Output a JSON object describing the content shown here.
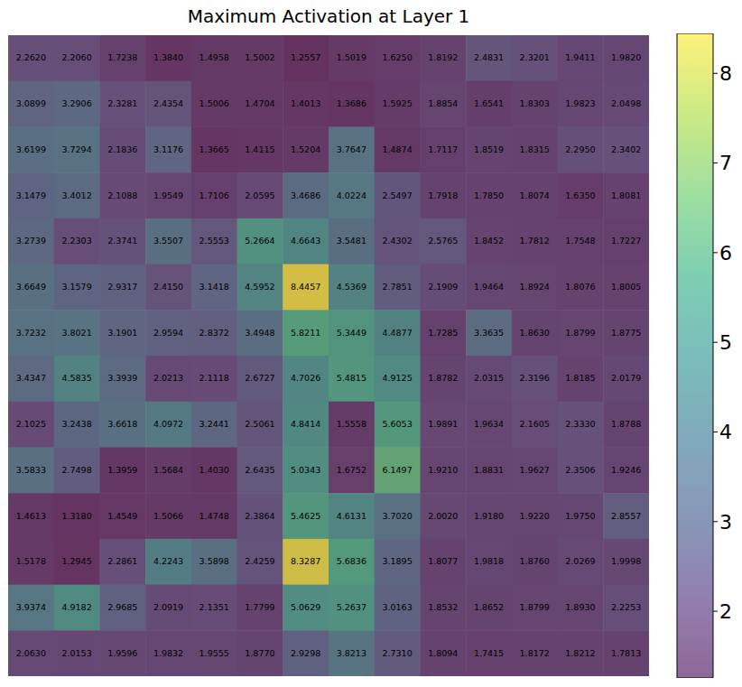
{
  "chart_data": {
    "type": "heatmap",
    "title": "Maximum Activation at Layer 1",
    "data_labels": true,
    "tick_labels": false,
    "cells": [
      [
        2.262,
        2.206,
        1.7238,
        1.384,
        1.4958,
        1.5002,
        1.2557,
        1.5019,
        1.625,
        1.8192,
        2.4831,
        2.3201,
        1.9411,
        1.982
      ],
      [
        3.0899,
        3.2906,
        2.3281,
        2.4354,
        1.5006,
        1.4704,
        1.4013,
        1.3686,
        1.5925,
        1.8854,
        1.6541,
        1.8303,
        1.9823,
        2.0498
      ],
      [
        3.6199,
        3.7294,
        2.1836,
        3.1176,
        1.3665,
        1.4115,
        1.5204,
        3.7647,
        1.4874,
        1.7117,
        1.8519,
        1.8315,
        2.295,
        2.3402
      ],
      [
        3.1479,
        3.4012,
        2.1088,
        1.9549,
        1.7106,
        2.0595,
        3.4686,
        4.0224,
        2.5497,
        1.7918,
        1.785,
        1.8074,
        1.635,
        1.8081
      ],
      [
        3.2739,
        2.2303,
        2.3741,
        3.5507,
        2.5553,
        5.2664,
        4.6643,
        3.5481,
        2.4302,
        2.5765,
        1.8452,
        1.7812,
        1.7548,
        1.7227
      ],
      [
        3.6649,
        3.1579,
        2.9317,
        2.415,
        3.1418,
        4.5952,
        8.4457,
        4.5369,
        2.7851,
        2.1909,
        1.9464,
        1.8924,
        1.8076,
        1.8005
      ],
      [
        3.7232,
        3.8021,
        3.1901,
        2.9594,
        2.8372,
        3.4948,
        5.8211,
        5.3449,
        4.4877,
        1.7285,
        3.3635,
        1.863,
        1.8799,
        1.8775
      ],
      [
        3.4347,
        4.5835,
        3.3939,
        2.0213,
        2.1118,
        2.6727,
        4.7026,
        5.4815,
        4.9125,
        1.8782,
        2.0315,
        2.3196,
        1.8185,
        2.0179
      ],
      [
        2.1025,
        3.2438,
        3.6618,
        4.0972,
        3.2441,
        2.5061,
        4.8414,
        1.5558,
        5.6053,
        1.9891,
        1.9634,
        2.1605,
        2.333,
        1.8788
      ],
      [
        3.5833,
        2.7498,
        1.3959,
        1.5684,
        1.403,
        2.6435,
        5.0343,
        1.6752,
        6.1497,
        1.921,
        1.8831,
        1.9627,
        2.3506,
        1.9246
      ],
      [
        1.4613,
        1.318,
        1.4549,
        1.5066,
        1.4748,
        2.3864,
        5.4625,
        4.6131,
        3.702,
        2.002,
        1.918,
        1.922,
        1.975,
        2.8557
      ],
      [
        1.5178,
        1.2945,
        2.2861,
        4.2243,
        3.5898,
        2.4259,
        8.3287,
        5.6836,
        3.1895,
        1.8077,
        1.9818,
        1.876,
        2.0269,
        1.9998
      ],
      [
        3.9374,
        4.9182,
        2.9685,
        2.0919,
        2.1351,
        1.7799,
        5.0629,
        5.2637,
        3.0163,
        1.8532,
        1.8652,
        1.8799,
        1.893,
        2.2253
      ],
      [
        2.063,
        2.0153,
        1.9596,
        1.9832,
        1.9555,
        1.877,
        2.9298,
        3.8213,
        2.731,
        1.8094,
        1.7415,
        1.8172,
        1.8212,
        1.7813
      ]
    ],
    "value_labels": [
      [
        "2.2620",
        "2.2060",
        "1.7238",
        "1.3840",
        "1.4958",
        "1.5002",
        "1.2557",
        "1.5019",
        "1.6250",
        "1.8192",
        "2.4831",
        "2.3201",
        "1.9411",
        "1.9820"
      ],
      [
        "3.0899",
        "3.2906",
        "2.3281",
        "2.4354",
        "1.5006",
        "1.4704",
        "1.4013",
        "1.3686",
        "1.5925",
        "1.8854",
        "1.6541",
        "1.8303",
        "1.9823",
        "2.0498"
      ],
      [
        "3.6199",
        "3.7294",
        "2.1836",
        "3.1176",
        "1.3665",
        "1.4115",
        "1.5204",
        "3.7647",
        "1.4874",
        "1.7117",
        "1.8519",
        "1.8315",
        "2.2950",
        "2.3402"
      ],
      [
        "3.1479",
        "3.4012",
        "2.1088",
        "1.9549",
        "1.7106",
        "2.0595",
        "3.4686",
        "4.0224",
        "2.5497",
        "1.7918",
        "1.7850",
        "1.8074",
        "1.6350",
        "1.8081"
      ],
      [
        "3.2739",
        "2.2303",
        "2.3741",
        "3.5507",
        "2.5553",
        "5.2664",
        "4.6643",
        "3.5481",
        "2.4302",
        "2.5765",
        "1.8452",
        "1.7812",
        "1.7548",
        "1.7227"
      ],
      [
        "3.6649",
        "3.1579",
        "2.9317",
        "2.4150",
        "3.1418",
        "4.5952",
        "8.4457",
        "4.5369",
        "2.7851",
        "2.1909",
        "1.9464",
        "1.8924",
        "1.8076",
        "1.8005"
      ],
      [
        "3.7232",
        "3.8021",
        "3.1901",
        "2.9594",
        "2.8372",
        "3.4948",
        "5.8211",
        "5.3449",
        "4.4877",
        "1.7285",
        "3.3635",
        "1.8630",
        "1.8799",
        "1.8775"
      ],
      [
        "3.4347",
        "4.5835",
        "3.3939",
        "2.0213",
        "2.1118",
        "2.6727",
        "4.7026",
        "5.4815",
        "4.9125",
        "1.8782",
        "2.0315",
        "2.3196",
        "1.8185",
        "2.0179"
      ],
      [
        "2.1025",
        "3.2438",
        "3.6618",
        "4.0972",
        "3.2441",
        "2.5061",
        "4.8414",
        "1.5558",
        "5.6053",
        "1.9891",
        "1.9634",
        "2.1605",
        "2.3330",
        "1.8788"
      ],
      [
        "3.5833",
        "2.7498",
        "1.3959",
        "1.5684",
        "1.4030",
        "2.6435",
        "5.0343",
        "1.6752",
        "6.1497",
        "1.9210",
        "1.8831",
        "1.9627",
        "2.3506",
        "1.9246"
      ],
      [
        "1.4613",
        "1.3180",
        "1.4549",
        "1.5066",
        "1.4748",
        "2.3864",
        "5.4625",
        "4.6131",
        "3.7020",
        "2.0020",
        "1.9180",
        "1.9220",
        "1.9750",
        "2.8557"
      ],
      [
        "1.5178",
        "1.2945",
        "2.2861",
        "4.2243",
        "3.5898",
        "2.4259",
        "8.3287",
        "5.6836",
        "3.1895",
        "1.8077",
        "1.9818",
        "1.8760",
        "2.0269",
        "1.9998"
      ],
      [
        "3.9374",
        "4.9182",
        "2.9685",
        "2.0919",
        "2.1351",
        "1.7799",
        "5.0629",
        "5.2637",
        "3.0163",
        "1.8532",
        "1.8652",
        "1.8799",
        "1.8930",
        "2.2253"
      ],
      [
        "2.0630",
        "2.0153",
        "1.9596",
        "1.9832",
        "1.9555",
        "1.8770",
        "2.9298",
        "3.8213",
        "2.7310",
        "1.8094",
        "1.7415",
        "1.8172",
        "1.8212",
        "1.7813"
      ]
    ],
    "colorbar": {
      "range": [
        1.2557,
        8.4457
      ],
      "ticks": [
        2,
        3,
        4,
        5,
        6,
        7,
        8
      ]
    }
  }
}
